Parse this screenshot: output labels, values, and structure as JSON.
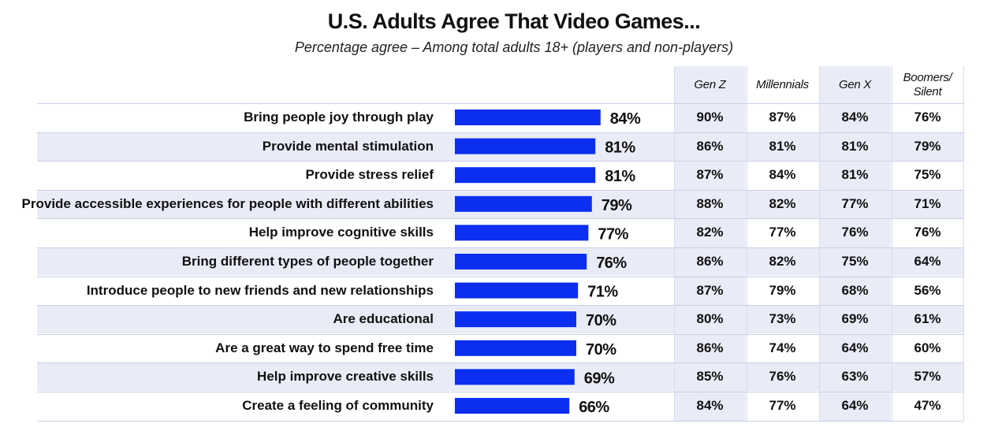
{
  "header": {
    "title": "U.S. Adults Agree That Video Games...",
    "subtitle": "Percentage agree – Among total adults 18+ (players and non-players)"
  },
  "colors": {
    "bar": "#0b2ef0",
    "shade": "#e9ecf7"
  },
  "chart_data": {
    "type": "bar",
    "orientation": "horizontal",
    "title": "U.S. Adults Agree That Video Games...",
    "subtitle": "Percentage agree – Among total adults 18+ (players and non-players)",
    "categories": [
      "Bring people joy through play",
      "Provide mental stimulation",
      "Provide stress relief",
      "Provide accessible experiences for people with different abilities",
      "Help improve cognitive skills",
      "Bring different types of people together",
      "Introduce people to new friends and new relationships",
      "Are educational",
      "Are a great way to spend free time",
      "Help improve creative skills",
      "Create a feeling of community"
    ],
    "values": [
      84,
      81,
      81,
      79,
      77,
      76,
      71,
      70,
      70,
      69,
      66
    ],
    "value_labels": [
      "84%",
      "81%",
      "81%",
      "79%",
      "77%",
      "76%",
      "71%",
      "70%",
      "70%",
      "69%",
      "66%"
    ],
    "xlim": [
      0,
      100
    ],
    "table": {
      "columns": [
        "Gen Z",
        "Millennials",
        "Gen X",
        "Boomers/\nSilent"
      ],
      "rows": [
        [
          "90%",
          "87%",
          "84%",
          "76%"
        ],
        [
          "86%",
          "81%",
          "81%",
          "79%"
        ],
        [
          "87%",
          "84%",
          "81%",
          "75%"
        ],
        [
          "88%",
          "82%",
          "77%",
          "71%"
        ],
        [
          "82%",
          "77%",
          "76%",
          "76%"
        ],
        [
          "86%",
          "82%",
          "75%",
          "64%"
        ],
        [
          "87%",
          "79%",
          "68%",
          "56%"
        ],
        [
          "80%",
          "73%",
          "69%",
          "61%"
        ],
        [
          "86%",
          "74%",
          "64%",
          "60%"
        ],
        [
          "85%",
          "76%",
          "63%",
          "57%"
        ],
        [
          "84%",
          "77%",
          "64%",
          "47%"
        ]
      ]
    }
  }
}
